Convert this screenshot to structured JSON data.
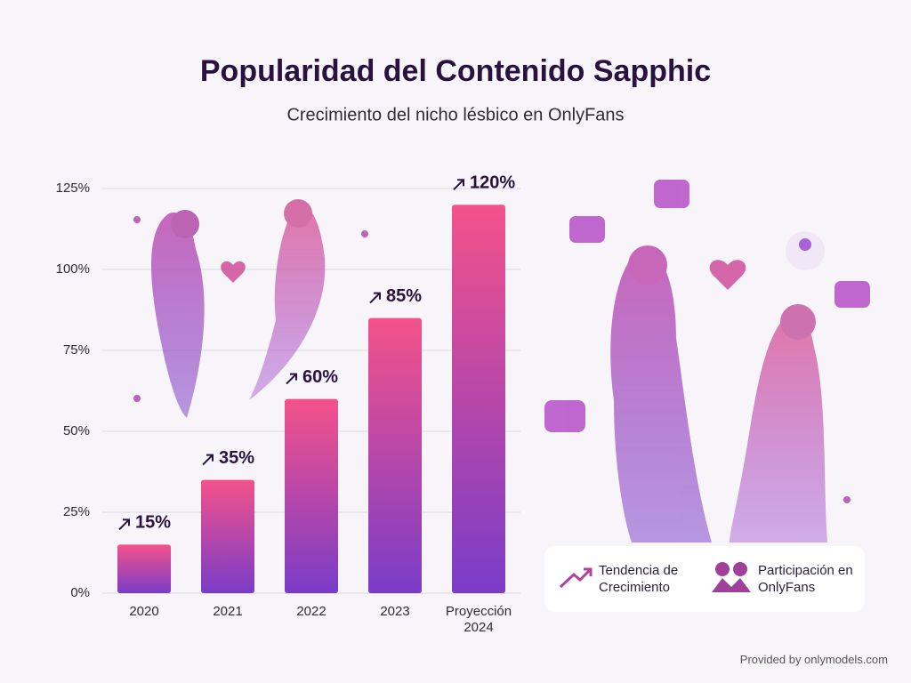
{
  "chart_data": {
    "type": "bar",
    "title": "Popularidad del Contenido Sapphic",
    "subtitle": "Crecimiento del nicho lésbico en OnlyFans",
    "categories": [
      "2020",
      "2021",
      "2022",
      "2023",
      "Proyección 2024"
    ],
    "values": [
      15,
      35,
      60,
      85,
      120
    ],
    "value_labels": [
      "15%",
      "35%",
      "60%",
      "85%",
      "120%"
    ],
    "gradient": [
      "#f4528a",
      "#7a3cc8"
    ],
    "ylim": [
      0,
      125
    ],
    "yticks": [
      {
        "value": 0,
        "label": "0%"
      },
      {
        "value": 25,
        "label": "25%"
      },
      {
        "value": 50,
        "label": "50%"
      },
      {
        "value": 75,
        "label": "75%"
      },
      {
        "value": 100,
        "label": "100%"
      },
      {
        "value": 125,
        "label": "125%"
      }
    ],
    "grid": true,
    "legend": [
      "Tendencia de Crecimiento",
      "Participación en OnlyFans"
    ],
    "footer": "Provided by onlymodels.com"
  }
}
